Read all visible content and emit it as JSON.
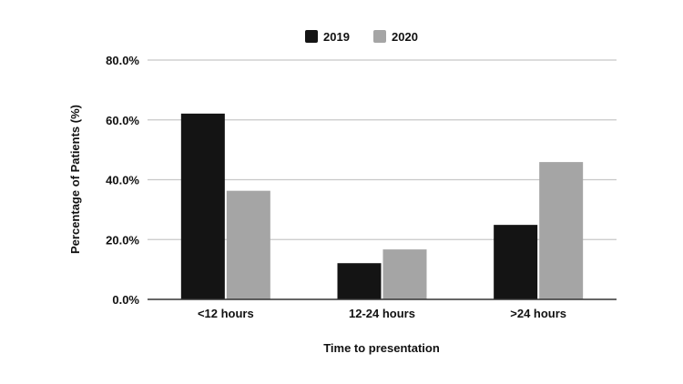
{
  "chart_data": {
    "type": "bar",
    "categories": [
      "<12 hours",
      "12-24 hours",
      ">24 hours"
    ],
    "series": [
      {
        "name": "2019",
        "values": [
          62.1,
          12.1,
          24.9
        ],
        "color": "#141414"
      },
      {
        "name": "2020",
        "values": [
          36.3,
          16.7,
          45.9
        ],
        "color": "#a5a5a5"
      }
    ],
    "xlabel": "Time to presentation",
    "ylabel": "Percentage of Patients (%)",
    "ylim": [
      0,
      80
    ],
    "yticks": [
      0,
      20,
      40,
      60,
      80
    ],
    "ytick_labels": [
      "0.0%",
      "20.0%",
      "40.0%",
      "60.0%",
      "80.0%"
    ],
    "grid": true,
    "legend_position": "top-center",
    "gridline_color": "#c8c8c8",
    "axis_color": "#333333"
  }
}
